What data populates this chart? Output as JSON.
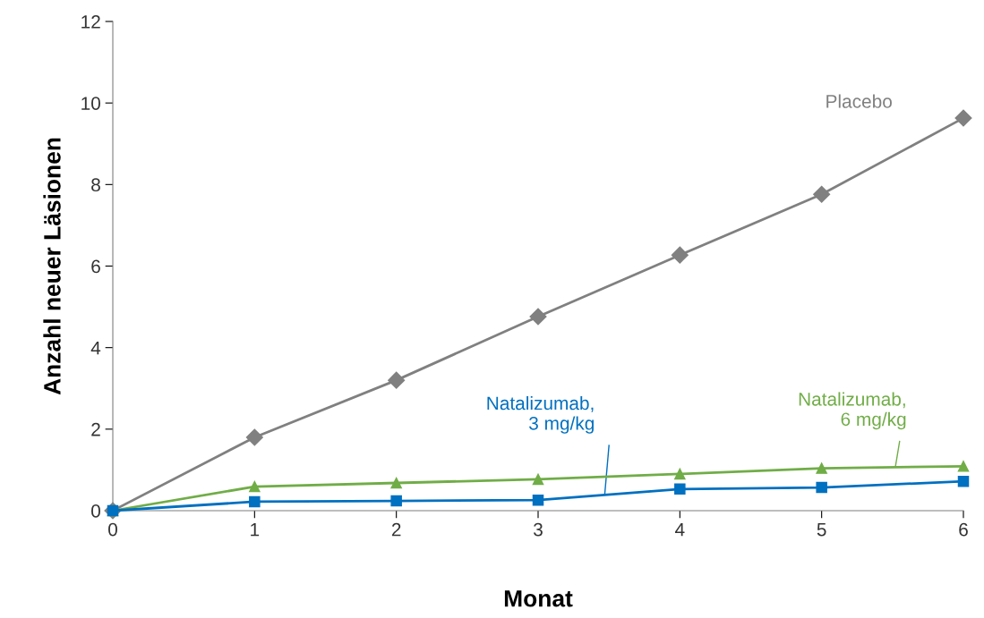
{
  "chart_data": {
    "type": "line",
    "xlabel": "Monat",
    "ylabel": "Anzahl neuer Läsionen",
    "x": [
      0,
      1,
      2,
      3,
      4,
      5,
      6
    ],
    "series": [
      {
        "name": "Placebo",
        "color": "#808080",
        "marker": "diamond",
        "values": [
          0,
          1.8,
          3.2,
          4.76,
          6.27,
          7.76,
          9.63
        ]
      },
      {
        "name": "Natalizumab,\n6 mg/kg",
        "color": "#70ad47",
        "marker": "triangle",
        "values": [
          0,
          0.59,
          0.68,
          0.77,
          0.9,
          1.04,
          1.09
        ]
      },
      {
        "name": "Natalizumab,\n3 mg/kg",
        "color": "#0070c0",
        "marker": "square",
        "values": [
          0,
          0.22,
          0.24,
          0.26,
          0.53,
          0.57,
          0.72
        ]
      }
    ],
    "xlim": [
      0,
      6
    ],
    "xticks": [
      0,
      1,
      2,
      3,
      4,
      5,
      6
    ],
    "ylim": [
      0,
      12
    ],
    "yticks": [
      0,
      2,
      4,
      6,
      8,
      10,
      12
    ],
    "grid": false,
    "legend": false,
    "line_style": "solid"
  }
}
